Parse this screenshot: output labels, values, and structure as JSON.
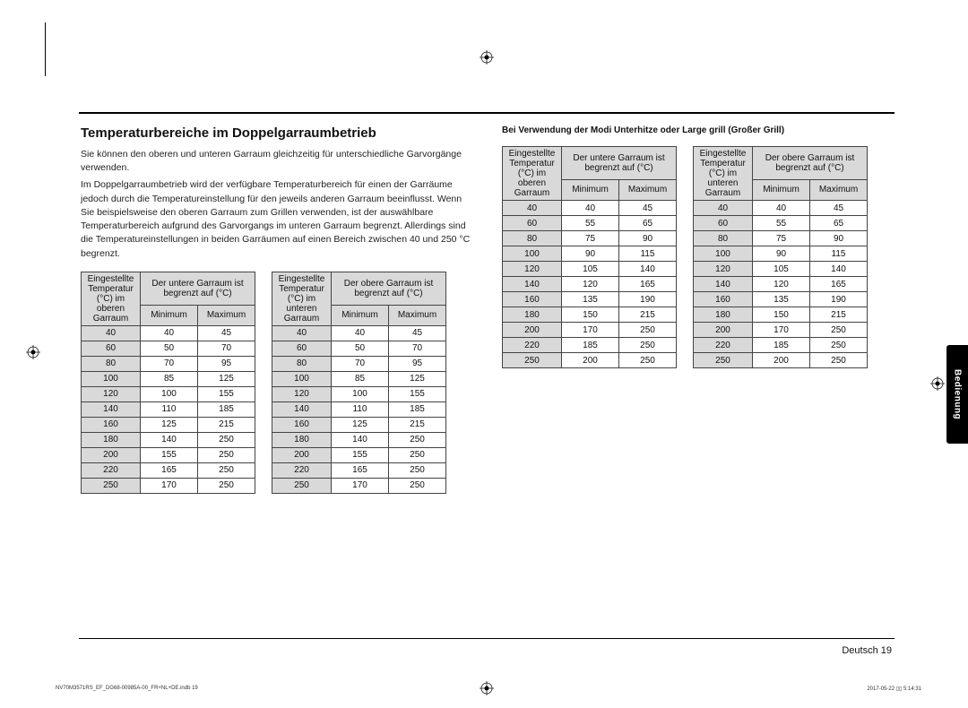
{
  "crop_line_color": "#000000",
  "heading": "Temperaturbereiche im Doppelgarraumbetrieb",
  "para1": "Sie können den oberen und unteren Garraum gleichzeitig für unterschiedliche Garvorgänge verwenden.",
  "para2": "Im Doppelgarraumbetrieb wird der verfügbare Temperaturbereich für einen der Garräume jedoch durch die Temperatureinstellung für den jeweils anderen Garraum beeinflusst. Wenn Sie beispielsweise den oberen Garraum zum Grillen verwenden, ist der auswählbare Temperaturbereich aufgrund des Garvorgangs im unteren Garraum begrenzt. Allerdings sind die Temperatureinstellungen in beiden Garräumen auf einen Bereich zwischen 40 und 250 °C begrenzt.",
  "right_note": "Bei Verwendung der Modi Unterhitze oder Large grill (Großer Grill)",
  "table_a": {
    "head1_l1": "Eingestellte",
    "head1_l2": "Temperatur",
    "head1_l3": "(°C) im",
    "head1_l4": "oberen",
    "head1_l5": "Garraum",
    "head2_l1": "Der untere Garraum ist",
    "head2_l2": "begrenzt auf (°C)",
    "min": "Minimum",
    "max": "Maximum",
    "rows": [
      [
        "40",
        "40",
        "45"
      ],
      [
        "60",
        "50",
        "70"
      ],
      [
        "80",
        "70",
        "95"
      ],
      [
        "100",
        "85",
        "125"
      ],
      [
        "120",
        "100",
        "155"
      ],
      [
        "140",
        "110",
        "185"
      ],
      [
        "160",
        "125",
        "215"
      ],
      [
        "180",
        "140",
        "250"
      ],
      [
        "200",
        "155",
        "250"
      ],
      [
        "220",
        "165",
        "250"
      ],
      [
        "250",
        "170",
        "250"
      ]
    ]
  },
  "table_b": {
    "head1_l1": "Eingestellte",
    "head1_l2": "Temperatur",
    "head1_l3": "(°C) im",
    "head1_l4": "unteren",
    "head1_l5": "Garraum",
    "head2_l1": "Der obere Garraum ist",
    "head2_l2": "begrenzt auf (°C)",
    "min": "Minimum",
    "max": "Maximum",
    "rows": [
      [
        "40",
        "40",
        "45"
      ],
      [
        "60",
        "50",
        "70"
      ],
      [
        "80",
        "70",
        "95"
      ],
      [
        "100",
        "85",
        "125"
      ],
      [
        "120",
        "100",
        "155"
      ],
      [
        "140",
        "110",
        "185"
      ],
      [
        "160",
        "125",
        "215"
      ],
      [
        "180",
        "140",
        "250"
      ],
      [
        "200",
        "155",
        "250"
      ],
      [
        "220",
        "165",
        "250"
      ],
      [
        "250",
        "170",
        "250"
      ]
    ]
  },
  "table_c": {
    "head1_l1": "Eingestellte",
    "head1_l2": "Temperatur",
    "head1_l3": "(°C) im",
    "head1_l4": "oberen",
    "head1_l5": "Garraum",
    "head2_l1": "Der untere Garraum ist",
    "head2_l2": "begrenzt auf (°C)",
    "min": "Minimum",
    "max": "Maximum",
    "rows": [
      [
        "40",
        "40",
        "45"
      ],
      [
        "60",
        "55",
        "65"
      ],
      [
        "80",
        "75",
        "90"
      ],
      [
        "100",
        "90",
        "115"
      ],
      [
        "120",
        "105",
        "140"
      ],
      [
        "140",
        "120",
        "165"
      ],
      [
        "160",
        "135",
        "190"
      ],
      [
        "180",
        "150",
        "215"
      ],
      [
        "200",
        "170",
        "250"
      ],
      [
        "220",
        "185",
        "250"
      ],
      [
        "250",
        "200",
        "250"
      ]
    ]
  },
  "table_d": {
    "head1_l1": "Eingestellte",
    "head1_l2": "Temperatur",
    "head1_l3": "(°C) im",
    "head1_l4": "unteren",
    "head1_l5": "Garraum",
    "head2_l1": "Der obere Garraum ist",
    "head2_l2": "begrenzt auf (°C)",
    "min": "Minimum",
    "max": "Maximum",
    "rows": [
      [
        "40",
        "40",
        "45"
      ],
      [
        "60",
        "55",
        "65"
      ],
      [
        "80",
        "75",
        "90"
      ],
      [
        "100",
        "90",
        "115"
      ],
      [
        "120",
        "105",
        "140"
      ],
      [
        "140",
        "120",
        "165"
      ],
      [
        "160",
        "135",
        "190"
      ],
      [
        "180",
        "150",
        "215"
      ],
      [
        "200",
        "170",
        "250"
      ],
      [
        "220",
        "185",
        "250"
      ],
      [
        "250",
        "200",
        "250"
      ]
    ]
  },
  "side_tab": "Bedienung",
  "footer_lang": "Deutsch  19",
  "footer_left": "NV70M3571RS_EF_DG68-00985A-00_FR+NL+DE.indb   19",
  "footer_right": "2017-05-22   ▯▯ 5:14:31"
}
